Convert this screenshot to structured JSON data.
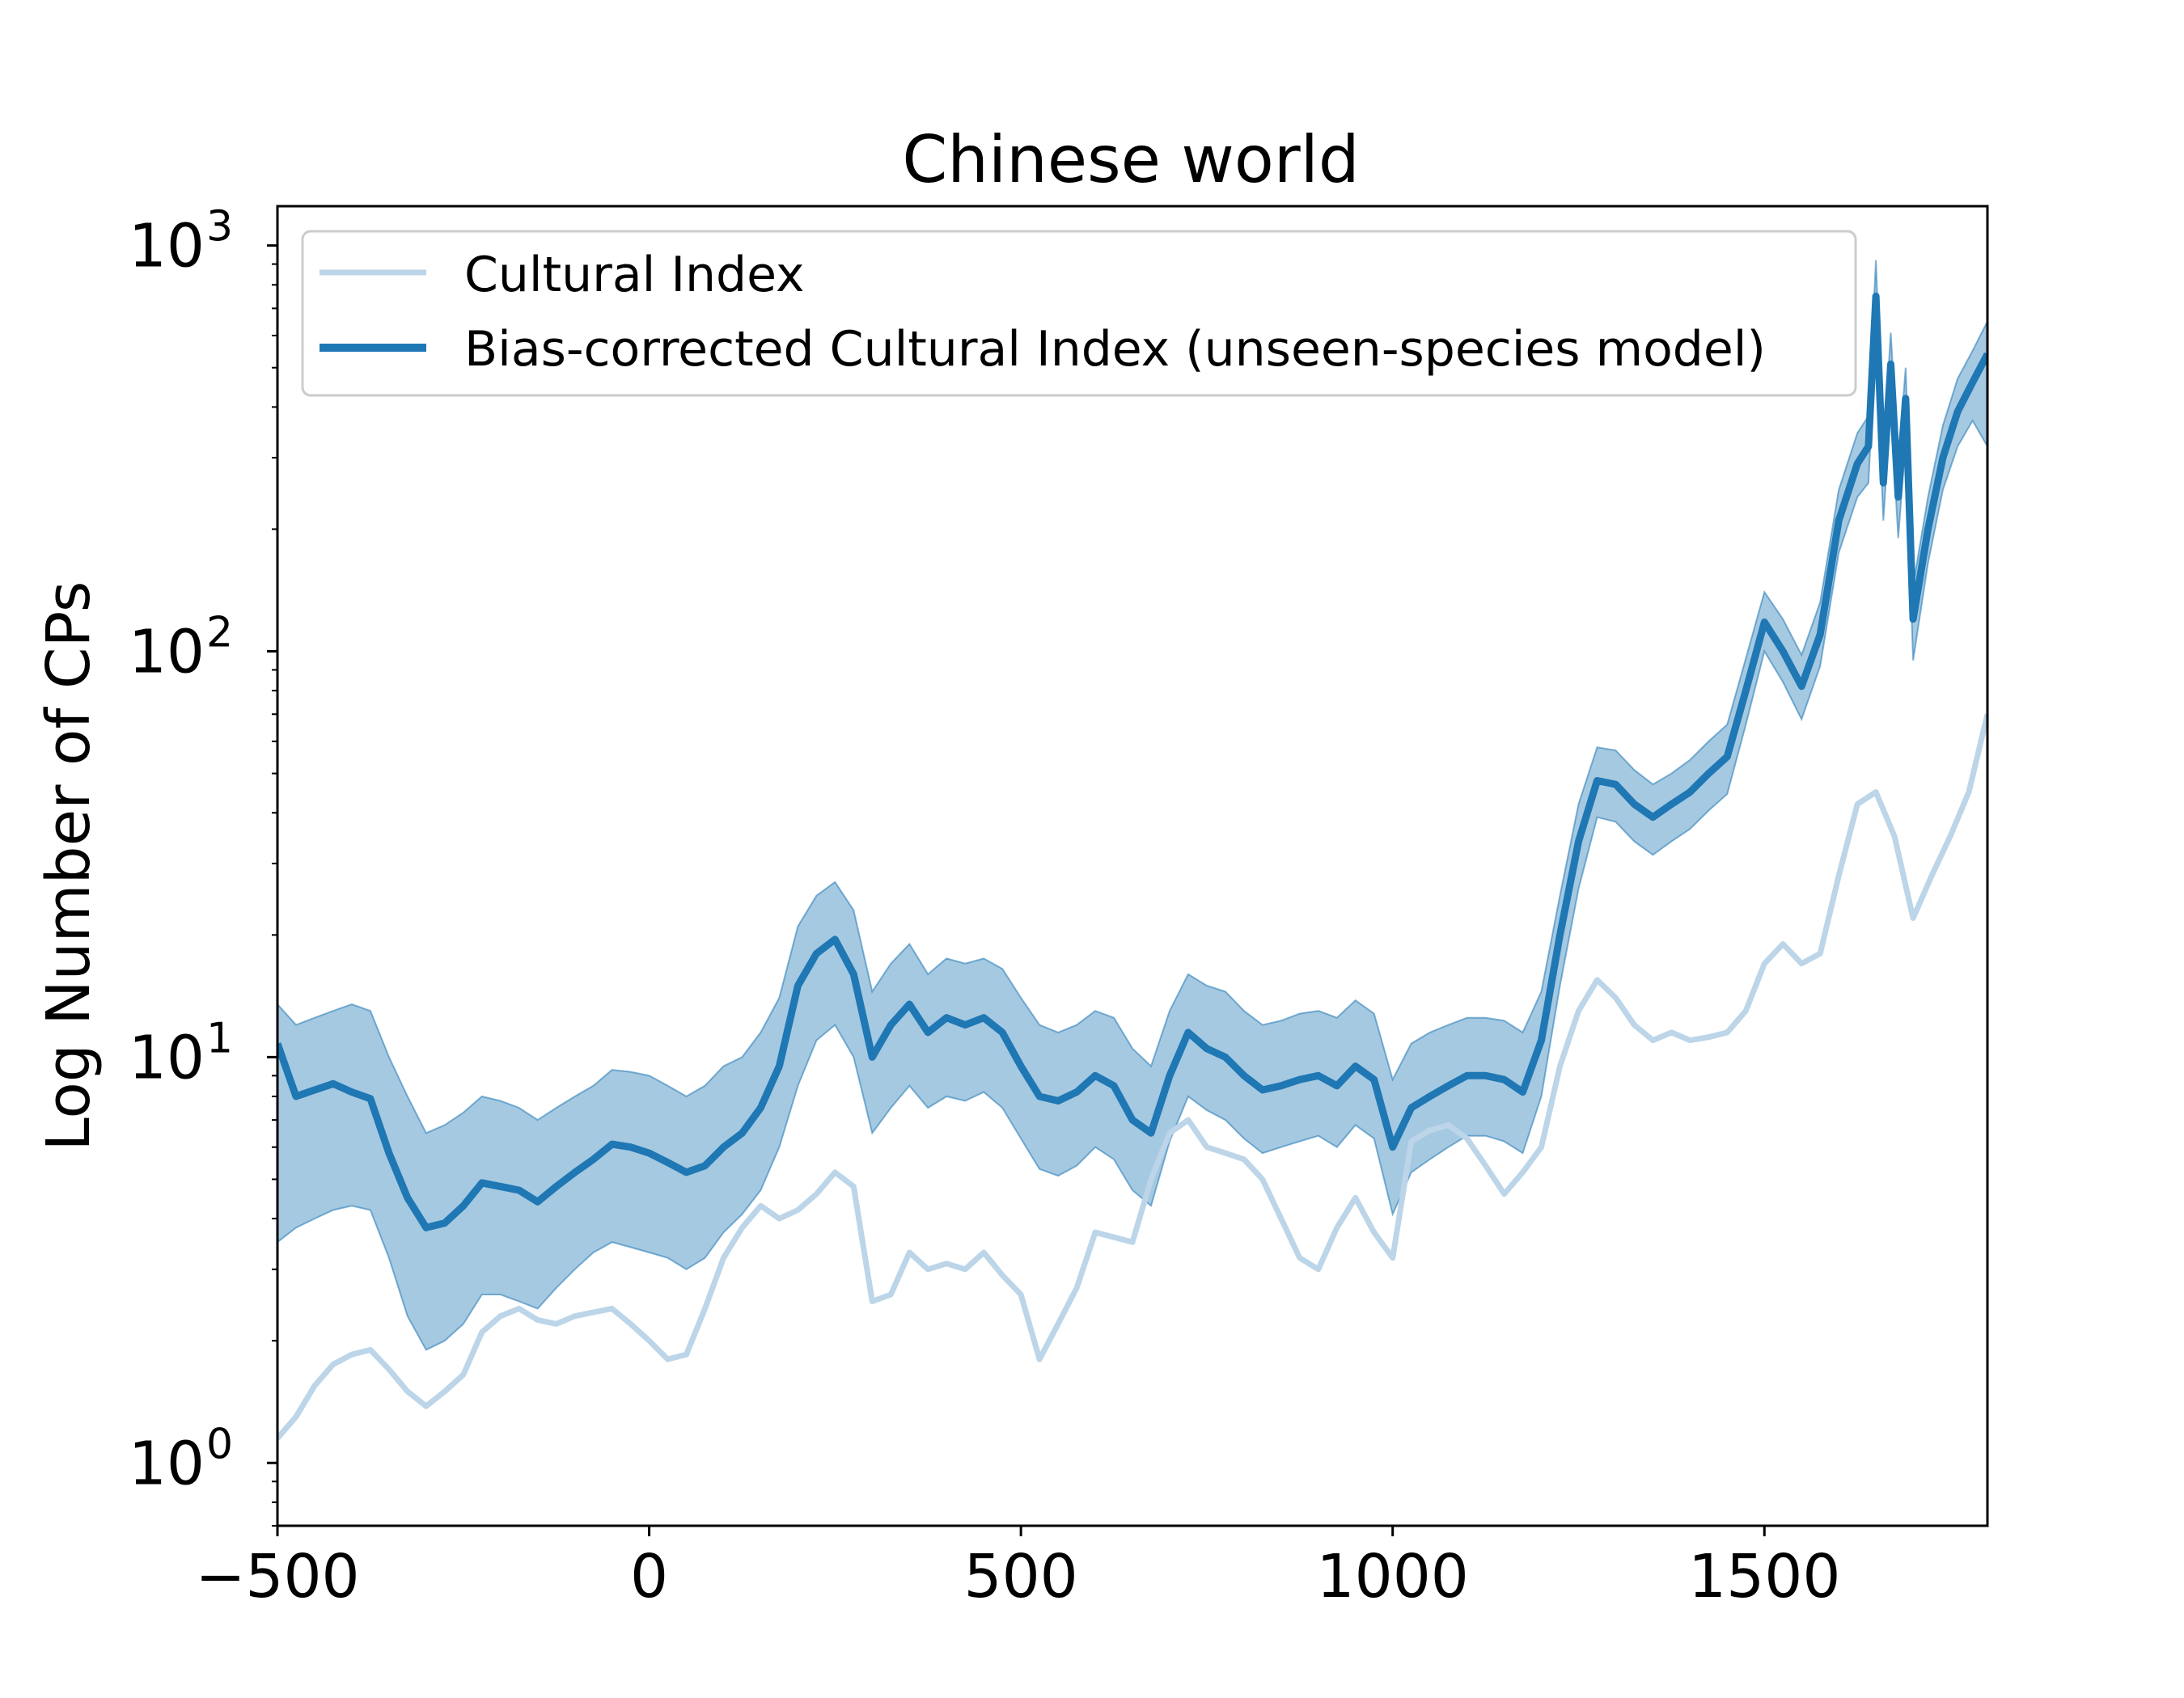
{
  "colors": {
    "raw_line": "#bcd5e8",
    "corrected_line": "#1f77b4",
    "band_fill": "#1f77b4",
    "axes": "#000000"
  },
  "chart_data": {
    "type": "line",
    "title": "Chinese world",
    "xlabel": "",
    "ylabel": "Log Number of CPs",
    "xlim": [
      -500,
      1800
    ],
    "ylim": [
      0.7,
      1250
    ],
    "yscale": "log",
    "grid": false,
    "legend_position": "top-left",
    "x_ticks": [
      {
        "value": -500,
        "label": "−500"
      },
      {
        "value": 0,
        "label": "0"
      },
      {
        "value": 500,
        "label": "500"
      },
      {
        "value": 1000,
        "label": "1000"
      },
      {
        "value": 1500,
        "label": "1500"
      }
    ],
    "y_ticks": [
      {
        "value": 1,
        "base": "10",
        "exp": "0"
      },
      {
        "value": 10,
        "base": "10",
        "exp": "1"
      },
      {
        "value": 100,
        "base": "10",
        "exp": "2"
      },
      {
        "value": 1000,
        "base": "10",
        "exp": "3"
      }
    ],
    "series": [
      {
        "name": "Cultural Index",
        "style": "light",
        "x": [
          -500,
          -475,
          -450,
          -425,
          -400,
          -375,
          -350,
          -325,
          -300,
          -275,
          -250,
          -225,
          -200,
          -175,
          -150,
          -125,
          -100,
          -75,
          -50,
          -25,
          0,
          25,
          50,
          75,
          100,
          125,
          150,
          175,
          200,
          225,
          250,
          275,
          300,
          325,
          350,
          375,
          400,
          425,
          450,
          475,
          500,
          525,
          550,
          575,
          600,
          625,
          650,
          675,
          700,
          725,
          750,
          775,
          800,
          825,
          850,
          875,
          900,
          925,
          950,
          975,
          1000,
          1025,
          1050,
          1075,
          1100,
          1125,
          1150,
          1175,
          1200,
          1225,
          1250,
          1275,
          1300,
          1325,
          1350,
          1375,
          1400,
          1425,
          1450,
          1475,
          1500,
          1525,
          1550,
          1575,
          1600,
          1625,
          1650,
          1675,
          1700,
          1725,
          1750,
          1775,
          1800
        ],
        "y": [
          1.15,
          1.3,
          1.55,
          1.75,
          1.85,
          1.9,
          1.7,
          1.5,
          1.38,
          1.5,
          1.65,
          2.1,
          2.3,
          2.4,
          2.25,
          2.2,
          2.3,
          2.35,
          2.4,
          2.2,
          2.0,
          1.8,
          1.85,
          2.4,
          3.2,
          3.8,
          4.3,
          4.0,
          4.2,
          4.6,
          5.2,
          4.8,
          2.5,
          2.6,
          3.3,
          3.0,
          3.1,
          3.0,
          3.3,
          2.9,
          2.6,
          1.8,
          2.2,
          2.7,
          3.7,
          3.6,
          3.5,
          5.0,
          6.5,
          7.0,
          6.0,
          5.8,
          5.6,
          5.0,
          4.0,
          3.2,
          3.0,
          3.8,
          4.5,
          3.7,
          3.2,
          6.2,
          6.6,
          6.8,
          6.3,
          5.4,
          4.6,
          5.2,
          6.0,
          9.5,
          13.0,
          15.5,
          14.0,
          12.0,
          11.0,
          11.5,
          11.0,
          11.2,
          11.5,
          13.0,
          17.0,
          19.0,
          17.0,
          18.0,
          28.0,
          42.0,
          45.0,
          35.0,
          22.0,
          28.0,
          35.0,
          45.0,
          70.0
        ]
      },
      {
        "name": "Bias-corrected Cultural Index (unseen-species model)",
        "style": "bold",
        "x": [
          -500,
          -475,
          -450,
          -425,
          -400,
          -375,
          -350,
          -325,
          -300,
          -275,
          -250,
          -225,
          -200,
          -175,
          -150,
          -125,
          -100,
          -75,
          -50,
          -25,
          0,
          25,
          50,
          75,
          100,
          125,
          150,
          175,
          200,
          225,
          250,
          275,
          300,
          325,
          350,
          375,
          400,
          425,
          450,
          475,
          500,
          525,
          550,
          575,
          600,
          625,
          650,
          675,
          700,
          725,
          750,
          775,
          800,
          825,
          850,
          875,
          900,
          925,
          950,
          975,
          1000,
          1025,
          1050,
          1075,
          1100,
          1125,
          1150,
          1175,
          1200,
          1225,
          1250,
          1275,
          1300,
          1325,
          1350,
          1375,
          1400,
          1425,
          1450,
          1475,
          1500,
          1525,
          1550,
          1575,
          1600,
          1625,
          1640,
          1650,
          1660,
          1670,
          1680,
          1690,
          1700,
          1720,
          1740,
          1760,
          1780,
          1800
        ],
        "y": [
          10.8,
          8.0,
          8.3,
          8.6,
          8.2,
          7.9,
          5.8,
          4.5,
          3.8,
          3.9,
          4.3,
          4.9,
          4.8,
          4.7,
          4.4,
          4.8,
          5.2,
          5.6,
          6.1,
          6.0,
          5.8,
          5.5,
          5.2,
          5.4,
          6.0,
          6.5,
          7.5,
          9.5,
          15.0,
          18.0,
          19.5,
          16.0,
          10.0,
          12.0,
          13.5,
          11.5,
          12.5,
          12.0,
          12.5,
          11.5,
          9.5,
          8.0,
          7.8,
          8.2,
          9.0,
          8.5,
          7.0,
          6.5,
          9.0,
          11.5,
          10.5,
          10.0,
          9.0,
          8.3,
          8.5,
          8.8,
          9.0,
          8.5,
          9.5,
          8.8,
          6.0,
          7.5,
          8.0,
          8.5,
          9.0,
          9.0,
          8.8,
          8.2,
          11.0,
          20.0,
          34.0,
          48.0,
          47.0,
          42.0,
          39.0,
          42.0,
          45.0,
          50.0,
          55.0,
          80.0,
          118.0,
          100.0,
          82.0,
          110.0,
          210.0,
          290.0,
          320.0,
          750.0,
          260.0,
          510.0,
          240.0,
          420.0,
          120.0,
          200.0,
          300.0,
          390.0,
          460.0,
          540.0
        ],
        "band_lower": [
          3.5,
          3.8,
          4.0,
          4.2,
          4.3,
          4.2,
          3.2,
          2.3,
          1.9,
          2.0,
          2.2,
          2.6,
          2.6,
          2.5,
          2.4,
          2.7,
          3.0,
          3.3,
          3.5,
          3.4,
          3.3,
          3.2,
          3.0,
          3.2,
          3.7,
          4.1,
          4.7,
          6.0,
          8.5,
          11.0,
          12.0,
          10.0,
          6.5,
          7.5,
          8.5,
          7.5,
          8.0,
          7.8,
          8.2,
          7.5,
          6.3,
          5.3,
          5.1,
          5.4,
          6.0,
          5.6,
          4.7,
          4.3,
          6.2,
          8.0,
          7.4,
          7.0,
          6.3,
          5.8,
          6.0,
          6.2,
          6.4,
          6.0,
          6.8,
          6.3,
          4.1,
          5.2,
          5.6,
          6.0,
          6.4,
          6.4,
          6.2,
          5.8,
          8.0,
          15.0,
          26.0,
          39.0,
          38.0,
          34.0,
          31.5,
          34.0,
          36.5,
          40.5,
          44.5,
          66.0,
          100.0,
          84.0,
          68.0,
          92.0,
          175.0,
          240.0,
          260.0,
          600.0,
          210.0,
          400.0,
          190.0,
          330.0,
          95.0,
          165.0,
          250.0,
          320.0,
          370.0,
          320.0
        ],
        "band_upper": [
          13.5,
          12.0,
          12.5,
          13.0,
          13.5,
          13.0,
          10.0,
          8.0,
          6.5,
          6.8,
          7.3,
          8.0,
          7.8,
          7.5,
          7.0,
          7.5,
          8.0,
          8.5,
          9.3,
          9.2,
          9.0,
          8.5,
          8.0,
          8.5,
          9.5,
          10.0,
          11.5,
          14.0,
          21.0,
          25.0,
          27.0,
          23.0,
          14.5,
          17.0,
          19.0,
          16.0,
          17.5,
          17.0,
          17.5,
          16.5,
          14.0,
          12.0,
          11.5,
          12.0,
          13.0,
          12.5,
          10.5,
          9.5,
          13.0,
          16.0,
          15.0,
          14.5,
          13.0,
          12.0,
          12.3,
          12.8,
          13.0,
          12.5,
          13.8,
          12.8,
          8.8,
          10.8,
          11.5,
          12.0,
          12.5,
          12.5,
          12.3,
          11.5,
          14.5,
          25.0,
          42.0,
          58.0,
          57.0,
          51.0,
          47.0,
          50.0,
          54.0,
          60.0,
          66.0,
          96.0,
          140.0,
          120.0,
          98.0,
          132.0,
          250.0,
          345.0,
          380.0,
          920.0,
          310.0,
          610.0,
          290.0,
          500.0,
          145.0,
          240.0,
          360.0,
          470.0,
          550.0,
          650.0
        ]
      }
    ]
  }
}
